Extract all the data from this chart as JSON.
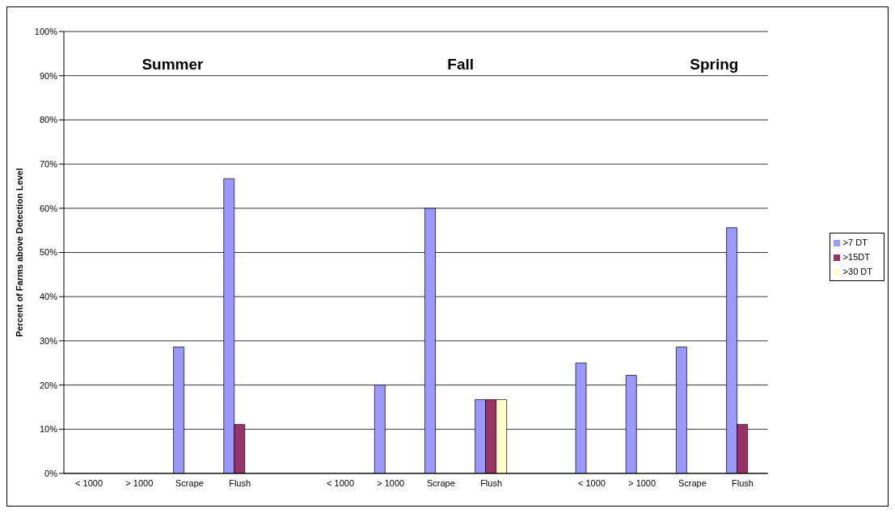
{
  "chart_data": {
    "type": "bar",
    "ylabel": "Percent of Farms above Detection Level",
    "categories": [
      "< 1000",
      "> 1000",
      "Scrape",
      "Flush",
      null,
      "< 1000",
      "> 1000",
      "Scrape",
      "Flush",
      null,
      "< 1000",
      "> 1000",
      "Scrape",
      "Flush"
    ],
    "series": [
      {
        "name": ">7 DT",
        "color": "#9999ff",
        "values": [
          null,
          null,
          28.6,
          66.7,
          null,
          null,
          20,
          60,
          16.7,
          null,
          25,
          22.2,
          28.6,
          55.6
        ]
      },
      {
        "name": ">15DT",
        "color": "#993366",
        "values": [
          null,
          null,
          null,
          11.1,
          null,
          null,
          null,
          null,
          16.7,
          null,
          null,
          null,
          null,
          11.1
        ]
      },
      {
        "name": ">30 DT",
        "color": "#ffffcc",
        "values": [
          null,
          null,
          null,
          null,
          null,
          null,
          null,
          null,
          16.7,
          null,
          null,
          null,
          null,
          null
        ]
      }
    ],
    "ylim": [
      0,
      100
    ],
    "yticks": [
      {
        "value": 0,
        "label": "0%"
      },
      {
        "value": 10,
        "label": "10%"
      },
      {
        "value": 20,
        "label": "20%"
      },
      {
        "value": 30,
        "label": "30%"
      },
      {
        "value": 40,
        "label": "40%"
      },
      {
        "value": 50,
        "label": "50%"
      },
      {
        "value": 60,
        "label": "60%"
      },
      {
        "value": 70,
        "label": "70%"
      },
      {
        "value": 80,
        "label": "80%"
      },
      {
        "value": 90,
        "label": "90%"
      },
      {
        "value": 100,
        "label": "100%"
      }
    ],
    "grid": "y",
    "legend": "right",
    "annotations": [
      "Summer",
      "Fall",
      "Spring"
    ]
  }
}
